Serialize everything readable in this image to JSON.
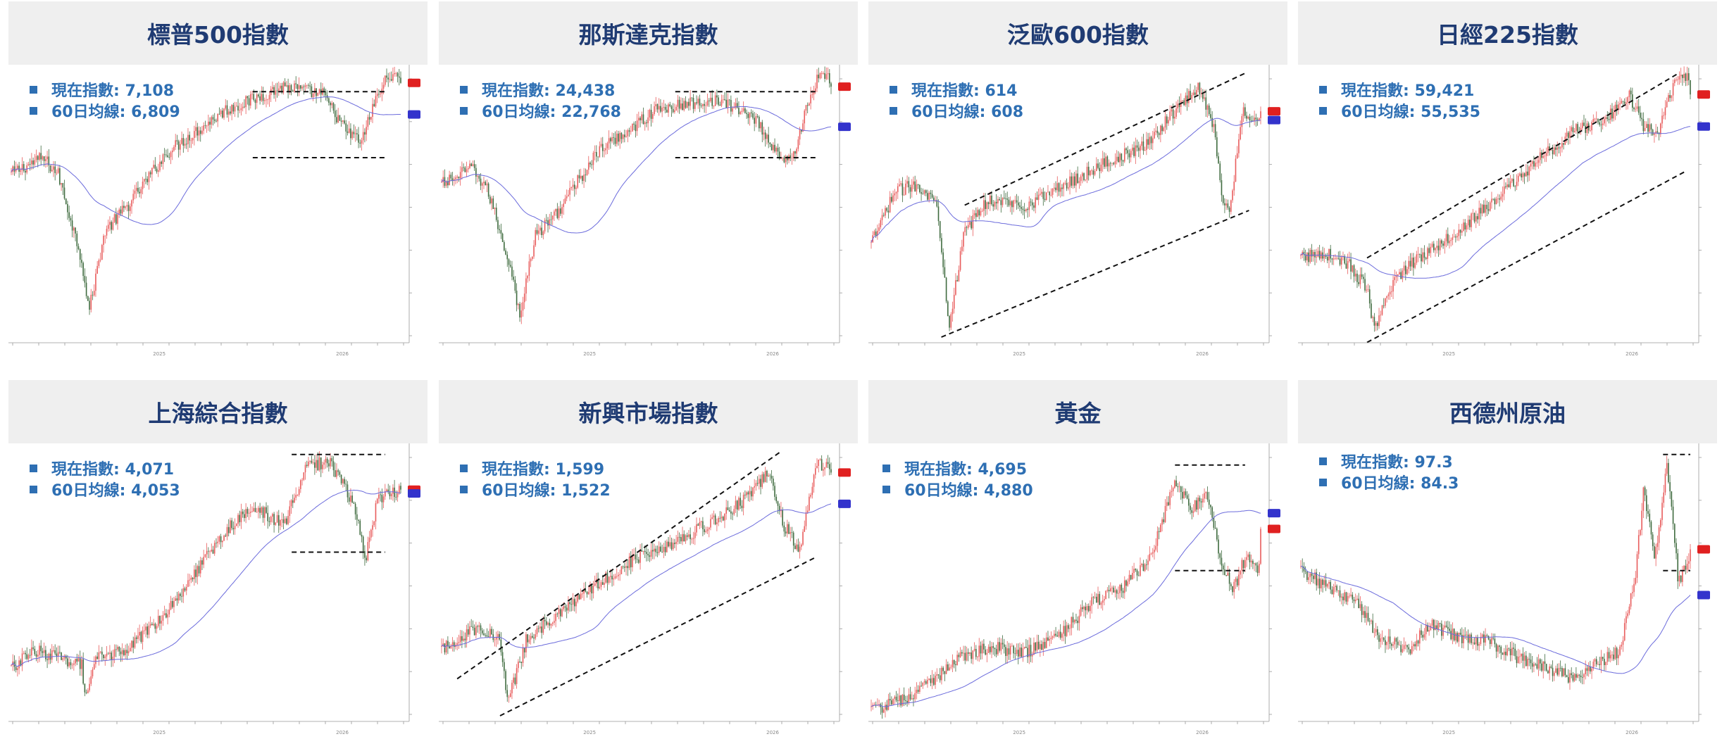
{
  "colors": {
    "up": "#e85c5c",
    "down": "#3f6b3f",
    "ma": "#6b6bdc",
    "header_bg": "#efefef",
    "title": "#1f3b73",
    "legend": "#2e6fb3",
    "last_badge": "#e02020",
    "ma_badge": "#3333cc"
  },
  "panels": [
    {
      "title": "標普500指數",
      "legend": {
        "current": "現在指數: 7,108",
        "ma60": "60日均線: 6,809"
      },
      "chart_data": {
        "type": "candlestick",
        "x_labels_year": [
          "2025",
          "2026"
        ],
        "last": 7108,
        "ma60": 6809,
        "overlay": "range",
        "ylim": [
          4700,
          7200
        ]
      }
    },
    {
      "title": "那斯達克指數",
      "legend": {
        "current": "現在指數: 24,438",
        "ma60": "60日均線: 22,768"
      },
      "chart_data": {
        "type": "candlestick",
        "x_labels_year": [
          "2025",
          "2026"
        ],
        "last": 24438,
        "ma60": 22768,
        "overlay": "range",
        "ylim": [
          14000,
          25000
        ]
      }
    },
    {
      "title": "泛歐600指數",
      "legend": {
        "current": "現在指數: 614",
        "ma60": "60日均線: 608"
      },
      "chart_data": {
        "type": "candlestick",
        "x_labels_year": [
          "2025",
          "2026"
        ],
        "last": 614,
        "ma60": 608,
        "overlay": "channel",
        "ylim": [
          460,
          640
        ]
      }
    },
    {
      "title": "日經225指數",
      "legend": {
        "current": "現在指數: 59,421",
        "ma60": "60日均線: 55,535"
      },
      "chart_data": {
        "type": "candlestick",
        "x_labels_year": [
          "2025",
          "2026"
        ],
        "last": 59421,
        "ma60": 55535,
        "overlay": "channel",
        "ylim": [
          30000,
          62000
        ]
      }
    },
    {
      "title": "上海綜合指數",
      "legend": {
        "current": "現在指數: 4,071",
        "ma60": "60日均線: 4,053"
      },
      "chart_data": {
        "type": "candlestick",
        "x_labels_year": [
          "2025",
          "2026"
        ],
        "last": 4071,
        "ma60": 4053,
        "overlay": "range",
        "ylim": [
          3000,
          4250
        ]
      }
    },
    {
      "title": "新興市場指數",
      "legend": {
        "current": "現在指數: 1,599",
        "ma60": "60日均線: 1,522"
      },
      "chart_data": {
        "type": "candlestick",
        "x_labels_year": [
          "2025",
          "2026"
        ],
        "last": 1599,
        "ma60": 1522,
        "overlay": "channel",
        "ylim": [
          1000,
          1650
        ]
      }
    },
    {
      "title": "黃金",
      "legend": {
        "current": "現在指數: 4,695",
        "ma60": "60日均線: 4,880"
      },
      "chart_data": {
        "type": "candlestick",
        "x_labels_year": [
          "2025",
          "2026"
        ],
        "last": 4695,
        "ma60": 4880,
        "overlay": "range",
        "ylim": [
          2500,
          5600
        ]
      }
    },
    {
      "title": "西德州原油",
      "legend": {
        "current": "現在指數: 97.3",
        "ma60": "60日均線: 84.3"
      },
      "chart_data": {
        "type": "candlestick",
        "x_labels_year": [
          "2025",
          "2026"
        ],
        "last": 97.3,
        "ma60": 84.3,
        "overlay": "range",
        "ylim": [
          50,
          125
        ]
      }
    }
  ]
}
